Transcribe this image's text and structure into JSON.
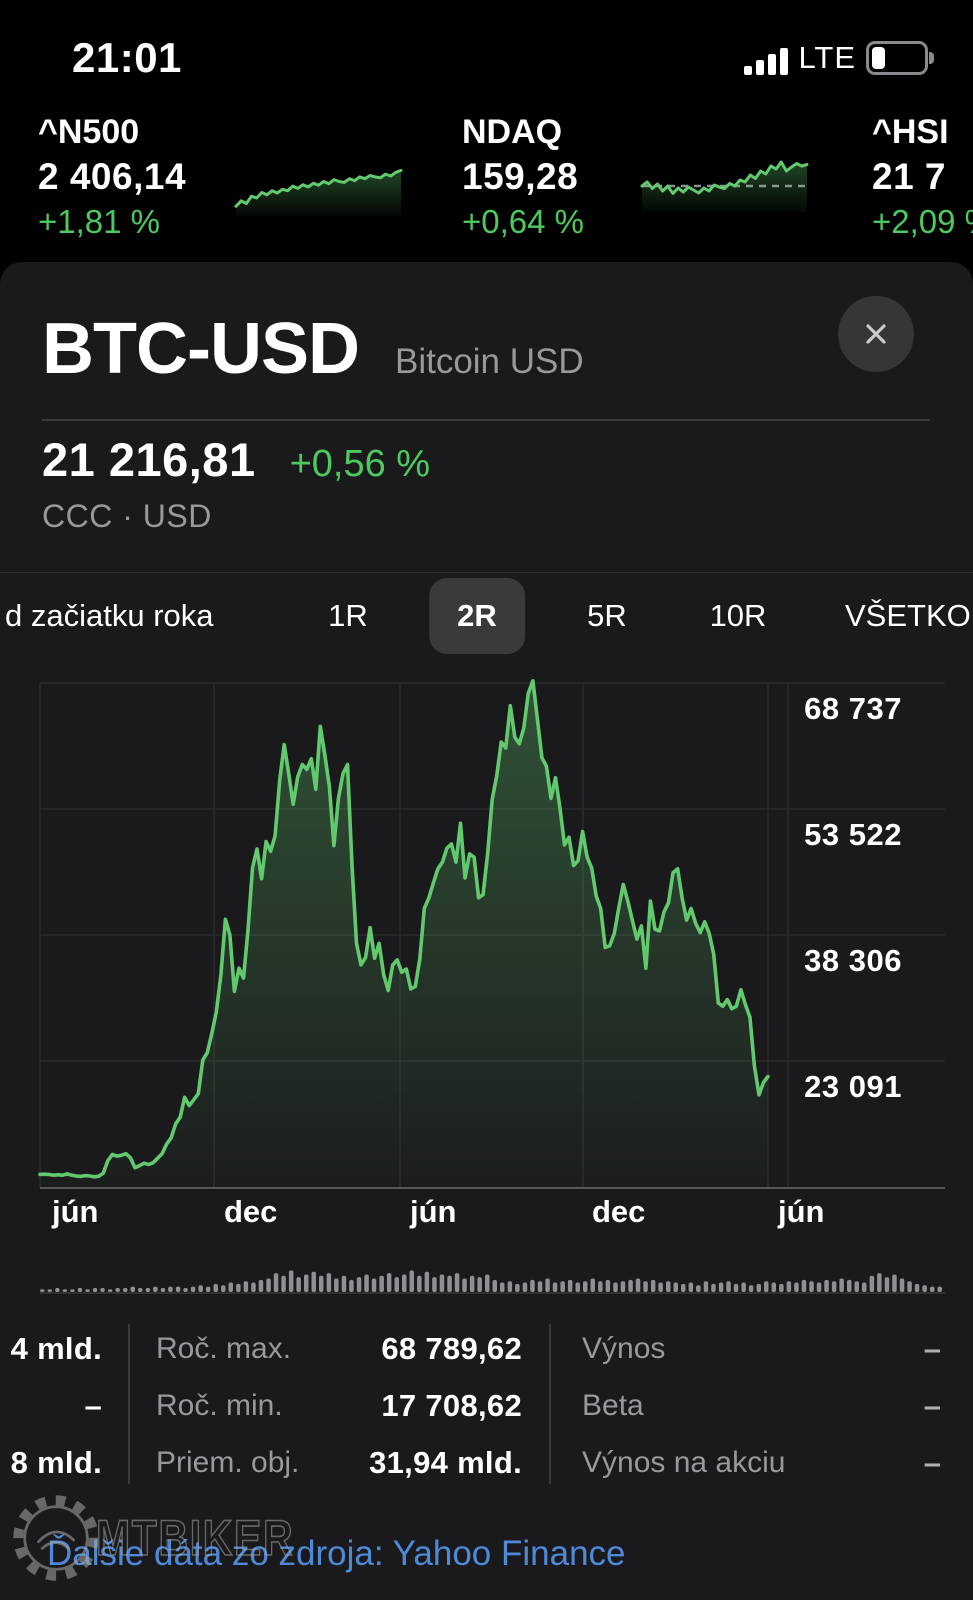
{
  "status_bar": {
    "time": "21:01",
    "network": "LTE"
  },
  "ticker": {
    "items": [
      {
        "symbol": "^N500",
        "value": "2 406,14",
        "change": "+1,81 %"
      },
      {
        "symbol": "NDAQ",
        "value": "159,28",
        "change": "+0,64 %"
      },
      {
        "symbol": "^HSI",
        "value": "21 7",
        "change": "+2,09 %"
      }
    ]
  },
  "card": {
    "symbol": "BTC-USD",
    "name": "Bitcoin USD",
    "price": "21 216,81",
    "change": "+0,56 %",
    "market": "CCC · USD"
  },
  "range_tabs": {
    "items": [
      {
        "label": "d začiatku roka",
        "selected": false
      },
      {
        "label": "1R",
        "selected": false
      },
      {
        "label": "2R",
        "selected": true
      },
      {
        "label": "5R",
        "selected": false
      },
      {
        "label": "10R",
        "selected": false
      },
      {
        "label": "VŠETKO",
        "selected": false
      }
    ]
  },
  "chart": {
    "y_labels": [
      "68 737",
      "53 522",
      "38 306",
      "23 091"
    ],
    "x_labels": [
      "jún",
      "dec",
      "jún",
      "dec",
      "jún"
    ]
  },
  "chart_data": [
    {
      "type": "area",
      "name": "BTC-USD price, 2R range, weekly",
      "title": "BTC-USD 2R",
      "x_tick_labels": [
        "jún",
        "dec",
        "jún",
        "dec",
        "jún"
      ],
      "y_tick_labels": [
        "68 737",
        "53 522",
        "38 306",
        "23 091"
      ],
      "y_gridline_values": [
        68737,
        53522,
        38306,
        23091
      ],
      "ylim": [
        7753,
        68737
      ],
      "line_color": "#62c96e",
      "values": [
        9400,
        9420,
        9380,
        9300,
        9350,
        9300,
        9450,
        9300,
        9200,
        9150,
        9250,
        9200,
        9100,
        9180,
        9550,
        11050,
        11800,
        11600,
        11700,
        11900,
        11400,
        10200,
        10450,
        10750,
        10600,
        10800,
        11350,
        11900,
        13050,
        13800,
        15500,
        16300,
        18700,
        17700,
        18400,
        19150,
        23200,
        24100,
        26400,
        29000,
        33500,
        40200,
        38300,
        31500,
        34300,
        33100,
        38900,
        46400,
        48700,
        45100,
        49600,
        48400,
        50300,
        57000,
        61300,
        57800,
        54100,
        57400,
        58900,
        58300,
        59600,
        55900,
        63500,
        60000,
        56200,
        49100,
        54800,
        57800,
        58900,
        46700,
        37300,
        34700,
        35600,
        39200,
        35500,
        37300,
        33500,
        31600,
        34700,
        35300,
        33800,
        34200,
        31800,
        32100,
        35400,
        41500,
        42800,
        44600,
        46300,
        47100,
        48800,
        49300,
        47100,
        51800,
        45200,
        48100,
        47700,
        42800,
        43200,
        48200,
        54700,
        57500,
        61600,
        60900,
        66000,
        62200,
        61400,
        63300,
        67500,
        69000,
        64400,
        59700,
        58700,
        54800,
        57300,
        53600,
        49200,
        50100,
        46700,
        47300,
        50800,
        47700,
        46400,
        43000,
        41500,
        36800,
        37000,
        38500,
        41600,
        44400,
        42400,
        40100,
        37800,
        39400,
        34300,
        42400,
        39000,
        38800,
        41100,
        42200,
        45800,
        46300,
        42800,
        40100,
        41500,
        39700,
        38600,
        39900,
        38500,
        36000,
        30100,
        29700,
        30500,
        29400,
        29700,
        31700,
        29900,
        28400,
        22500,
        19000,
        20500,
        21216
      ]
    },
    {
      "type": "bar",
      "name": "volume bars",
      "values": [
        2,
        2,
        3,
        2,
        2,
        3,
        2,
        3,
        3,
        2,
        3,
        3,
        4,
        3,
        3,
        4,
        3,
        4,
        4,
        3,
        4,
        5,
        4,
        6,
        5,
        7,
        6,
        8,
        7,
        9,
        10,
        14,
        12,
        16,
        11,
        13,
        15,
        12,
        14,
        10,
        12,
        9,
        11,
        13,
        10,
        12,
        14,
        11,
        13,
        16,
        12,
        15,
        11,
        13,
        12,
        14,
        10,
        12,
        11,
        13,
        9,
        7,
        8,
        6,
        7,
        9,
        8,
        10,
        7,
        8,
        9,
        7,
        8,
        10,
        8,
        9,
        7,
        8,
        9,
        10,
        8,
        9,
        7,
        8,
        7,
        6,
        7,
        5,
        8,
        6,
        7,
        8,
        6,
        7,
        5,
        6,
        8,
        7,
        6,
        8,
        7,
        9,
        8,
        7,
        9,
        8,
        10,
        9,
        8,
        7,
        12,
        14,
        11,
        13,
        10,
        8,
        6,
        5,
        4,
        4
      ]
    },
    {
      "type": "line",
      "name": "^N500 sparkline",
      "values": [
        0.08,
        0.2,
        0.14,
        0.3,
        0.26,
        0.38,
        0.33,
        0.42,
        0.37,
        0.45,
        0.42,
        0.52,
        0.47,
        0.55,
        0.5,
        0.58,
        0.54,
        0.62,
        0.57,
        0.66,
        0.62,
        0.6,
        0.68,
        0.64,
        0.72,
        0.68,
        0.75,
        0.72,
        0.7,
        0.78,
        0.74,
        0.82,
        0.86
      ]
    },
    {
      "type": "line",
      "name": "NDAQ sparkline",
      "baseline": 0.4,
      "values": [
        0.4,
        0.48,
        0.35,
        0.44,
        0.3,
        0.4,
        0.25,
        0.36,
        0.28,
        0.38,
        0.32,
        0.26,
        0.36,
        0.3,
        0.42,
        0.38,
        0.35,
        0.45,
        0.4,
        0.52,
        0.48,
        0.62,
        0.55,
        0.7,
        0.64,
        0.8,
        0.74,
        0.88,
        0.7,
        0.78,
        0.85,
        0.8,
        0.83
      ]
    }
  ],
  "stats": {
    "left": [
      {
        "value": "4 mld."
      },
      {
        "value": "–"
      },
      {
        "value": "8 mld."
      }
    ],
    "middle": [
      {
        "label": "Roč. max.",
        "value": "68 789,62"
      },
      {
        "label": "Roč. min.",
        "value": "17 708,62"
      },
      {
        "label": "Priem. obj.",
        "value": "31,94 mld."
      }
    ],
    "right": [
      {
        "label": "Výnos",
        "value": "–"
      },
      {
        "label": "Beta",
        "value": "–"
      },
      {
        "label": "Výnos na akciu",
        "value": "–"
      }
    ]
  },
  "footer": {
    "link": "Ďalšie dáta zo zdroja: Yahoo Finance"
  },
  "watermark": {
    "text": "MTBIKER"
  },
  "colors": {
    "green_text": "#4cc95f",
    "line_green": "#62c96e",
    "link_blue": "#4e8ad8",
    "label_gray": "#98989e",
    "card_bg": "#1a1a1c"
  }
}
